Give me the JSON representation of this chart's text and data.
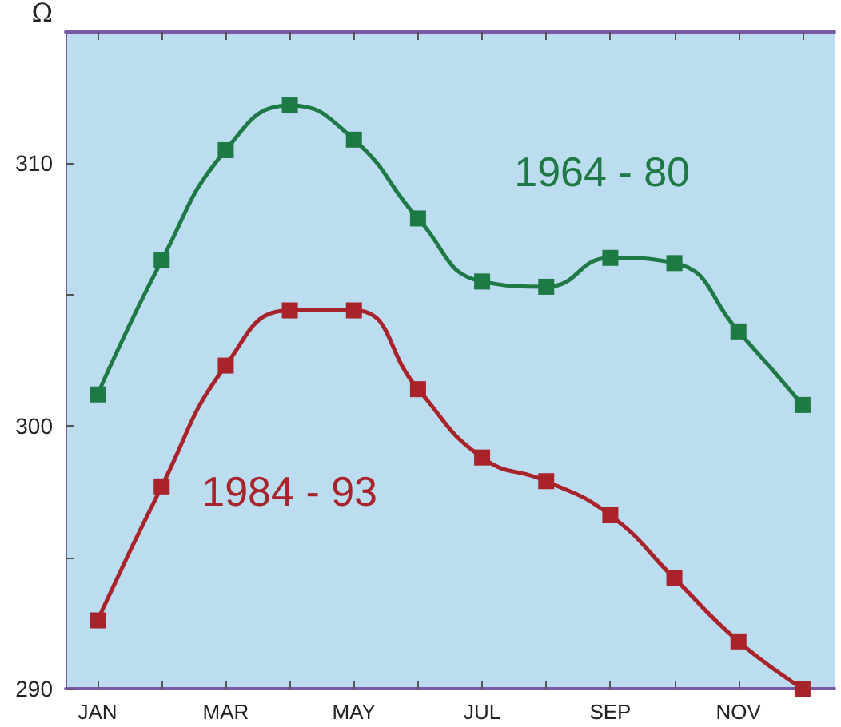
{
  "chart_data": {
    "type": "line",
    "ylabel": "Ω",
    "categories": [
      "JAN",
      null,
      "MAR",
      null,
      "MAY",
      null,
      "JUL",
      null,
      "SEP",
      null,
      "NOV",
      null
    ],
    "series": [
      {
        "name": "1964 - 80",
        "color": "#1e7a45",
        "values": [
          301.2,
          306.3,
          310.5,
          312.2,
          310.9,
          307.9,
          305.5,
          305.3,
          306.4,
          306.2,
          303.6,
          300.8
        ]
      },
      {
        "name": "1984 - 93",
        "color": "#a8232a",
        "values": [
          292.6,
          297.7,
          302.3,
          304.4,
          304.4,
          301.4,
          298.8,
          297.9,
          296.6,
          294.2,
          291.8,
          290.0
        ]
      }
    ],
    "ylim": [
      290,
      315
    ],
    "yticks": [
      290,
      {
        "value": 295,
        "label": null
      },
      300,
      {
        "value": 305,
        "label": null
      },
      310
    ],
    "grid": false,
    "legend": false,
    "marker": "square",
    "line_style": "solid"
  }
}
